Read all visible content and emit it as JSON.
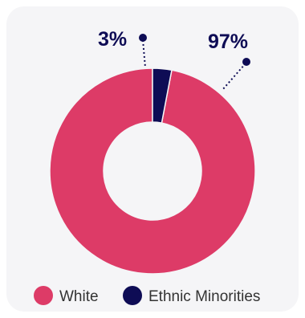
{
  "chart_data": {
    "type": "pie",
    "donut": true,
    "categories": [
      "White",
      "Ethnic Minorities"
    ],
    "values": [
      97,
      3
    ],
    "data_labels": [
      "97%",
      "3%"
    ],
    "colors": [
      "#dd3b67",
      "#0e0c55"
    ],
    "legend_position": "bottom-left"
  },
  "colors": {
    "background": "#f5f5f7",
    "label_text": "#0e0c55",
    "legend_text": "#333333"
  }
}
